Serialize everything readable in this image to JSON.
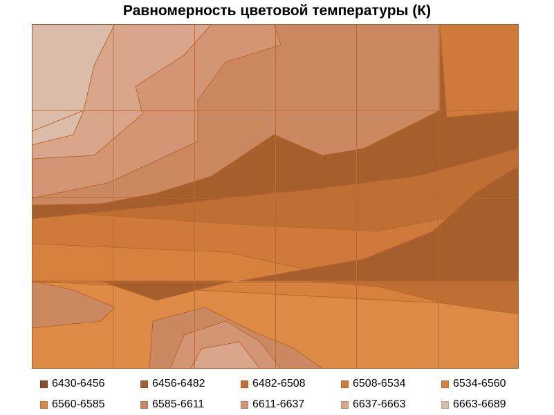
{
  "chart_data": {
    "type": "contour",
    "title": "Равномерность цветовой температуры (К)",
    "levels": [
      {
        "label": "6430-6456",
        "color": "#8a4f25"
      },
      {
        "label": "6456-6482",
        "color": "#a65f2c"
      },
      {
        "label": "6482-6508",
        "color": "#c06f34"
      },
      {
        "label": "6508-6534",
        "color": "#cf7a3a"
      },
      {
        "label": "6534-6560",
        "color": "#d6813d"
      },
      {
        "label": "6560-6585",
        "color": "#dc8a45"
      },
      {
        "label": "6585-6611",
        "color": "#cc8860"
      },
      {
        "label": "6611-6637",
        "color": "#d39574"
      },
      {
        "label": "6637-6663",
        "color": "#d9a68c"
      },
      {
        "label": "6663-6689",
        "color": "#dcbda9"
      }
    ],
    "grid_columns": 6,
    "grid_rows": 4,
    "grid": true,
    "legend_position": "bottom"
  }
}
